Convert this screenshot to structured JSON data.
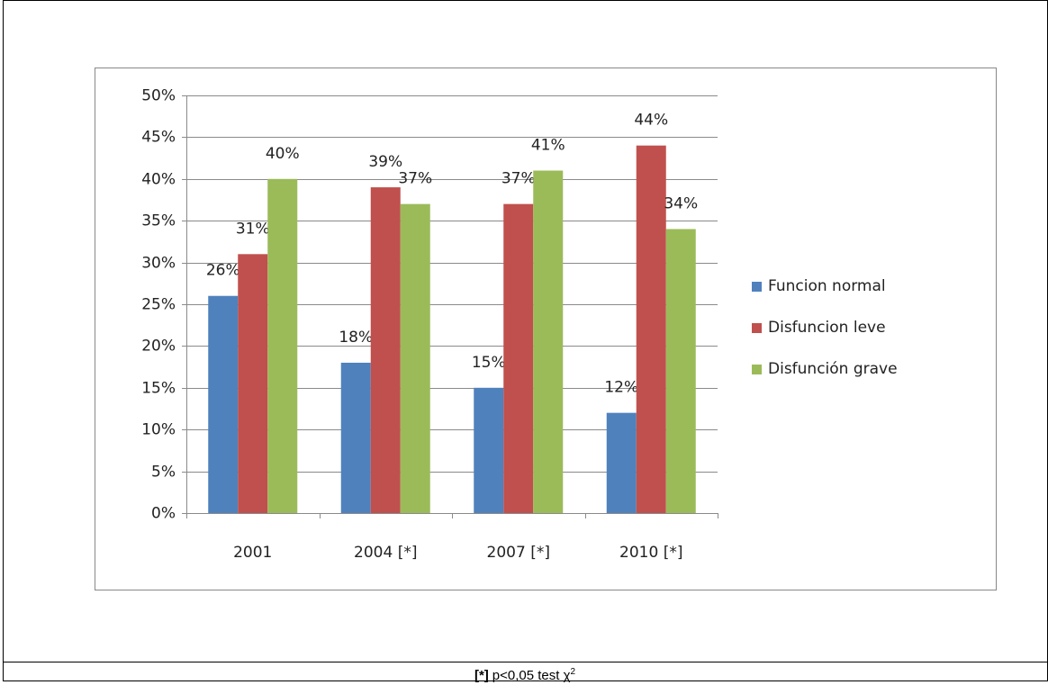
{
  "chart_data": {
    "type": "bar",
    "categories": [
      "2001",
      "2004 [*]",
      "2007 [*]",
      "2010 [*]"
    ],
    "series": [
      {
        "name": "Funcion normal",
        "color": "#4f81bd",
        "values": [
          26,
          18,
          15,
          12
        ],
        "value_labels": [
          "26%",
          "18%",
          "15%",
          "12%"
        ]
      },
      {
        "name": "Disfuncion leve",
        "color": "#c0504d",
        "values": [
          31,
          39,
          37,
          44
        ],
        "value_labels": [
          "31%",
          "39%",
          "37%",
          "44%"
        ]
      },
      {
        "name": "Disfunción grave",
        "color": "#9bbb59",
        "values": [
          40,
          37,
          41,
          34
        ],
        "value_labels": [
          "40%",
          "37%",
          "41%",
          "34%"
        ]
      }
    ],
    "ylim": [
      0,
      50
    ],
    "yticks": [
      {
        "value": 0,
        "label": "0%"
      },
      {
        "value": 5,
        "label": "5%"
      },
      {
        "value": 10,
        "label": "10%"
      },
      {
        "value": 15,
        "label": "15%"
      },
      {
        "value": 20,
        "label": "20%"
      },
      {
        "value": 25,
        "label": "25%"
      },
      {
        "value": 30,
        "label": "30%"
      },
      {
        "value": 35,
        "label": "35%"
      },
      {
        "value": 40,
        "label": "40%"
      },
      {
        "value": 45,
        "label": "45%"
      },
      {
        "value": 50,
        "label": "50%"
      }
    ],
    "grid": true,
    "legend": "right"
  },
  "footnote": {
    "bold": "[*]",
    "text": "p<0,05 test χ",
    "sup": "2"
  }
}
